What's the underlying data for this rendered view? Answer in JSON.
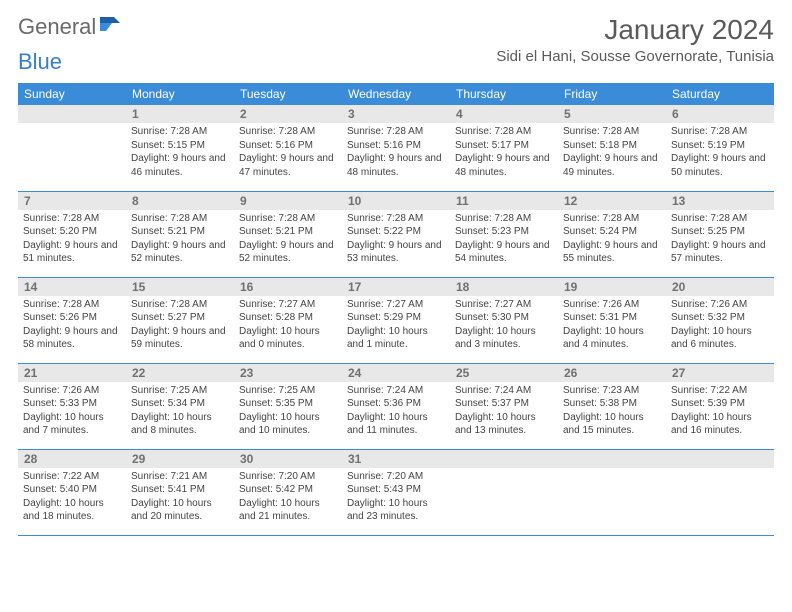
{
  "logo": {
    "part1": "General",
    "part2": "Blue"
  },
  "title": "January 2024",
  "location": "Sidi el Hani, Sousse Governorate, Tunisia",
  "colors": {
    "header_bg": "#3a8bd8",
    "header_text": "#ffffff",
    "daynum_bg": "#e8e8e8",
    "daynum_text": "#707070",
    "row_border": "#3a8bd8",
    "body_text": "#444444",
    "title_text": "#5a5a5a",
    "logo_gray": "#6a6a6a",
    "logo_blue": "#3a7fc4"
  },
  "weekdays": [
    "Sunday",
    "Monday",
    "Tuesday",
    "Wednesday",
    "Thursday",
    "Friday",
    "Saturday"
  ],
  "first_weekday_index": 1,
  "days": [
    {
      "n": 1,
      "sunrise": "7:28 AM",
      "sunset": "5:15 PM",
      "daylight": "9 hours and 46 minutes."
    },
    {
      "n": 2,
      "sunrise": "7:28 AM",
      "sunset": "5:16 PM",
      "daylight": "9 hours and 47 minutes."
    },
    {
      "n": 3,
      "sunrise": "7:28 AM",
      "sunset": "5:16 PM",
      "daylight": "9 hours and 48 minutes."
    },
    {
      "n": 4,
      "sunrise": "7:28 AM",
      "sunset": "5:17 PM",
      "daylight": "9 hours and 48 minutes."
    },
    {
      "n": 5,
      "sunrise": "7:28 AM",
      "sunset": "5:18 PM",
      "daylight": "9 hours and 49 minutes."
    },
    {
      "n": 6,
      "sunrise": "7:28 AM",
      "sunset": "5:19 PM",
      "daylight": "9 hours and 50 minutes."
    },
    {
      "n": 7,
      "sunrise": "7:28 AM",
      "sunset": "5:20 PM",
      "daylight": "9 hours and 51 minutes."
    },
    {
      "n": 8,
      "sunrise": "7:28 AM",
      "sunset": "5:21 PM",
      "daylight": "9 hours and 52 minutes."
    },
    {
      "n": 9,
      "sunrise": "7:28 AM",
      "sunset": "5:21 PM",
      "daylight": "9 hours and 52 minutes."
    },
    {
      "n": 10,
      "sunrise": "7:28 AM",
      "sunset": "5:22 PM",
      "daylight": "9 hours and 53 minutes."
    },
    {
      "n": 11,
      "sunrise": "7:28 AM",
      "sunset": "5:23 PM",
      "daylight": "9 hours and 54 minutes."
    },
    {
      "n": 12,
      "sunrise": "7:28 AM",
      "sunset": "5:24 PM",
      "daylight": "9 hours and 55 minutes."
    },
    {
      "n": 13,
      "sunrise": "7:28 AM",
      "sunset": "5:25 PM",
      "daylight": "9 hours and 57 minutes."
    },
    {
      "n": 14,
      "sunrise": "7:28 AM",
      "sunset": "5:26 PM",
      "daylight": "9 hours and 58 minutes."
    },
    {
      "n": 15,
      "sunrise": "7:28 AM",
      "sunset": "5:27 PM",
      "daylight": "9 hours and 59 minutes."
    },
    {
      "n": 16,
      "sunrise": "7:27 AM",
      "sunset": "5:28 PM",
      "daylight": "10 hours and 0 minutes."
    },
    {
      "n": 17,
      "sunrise": "7:27 AM",
      "sunset": "5:29 PM",
      "daylight": "10 hours and 1 minute."
    },
    {
      "n": 18,
      "sunrise": "7:27 AM",
      "sunset": "5:30 PM",
      "daylight": "10 hours and 3 minutes."
    },
    {
      "n": 19,
      "sunrise": "7:26 AM",
      "sunset": "5:31 PM",
      "daylight": "10 hours and 4 minutes."
    },
    {
      "n": 20,
      "sunrise": "7:26 AM",
      "sunset": "5:32 PM",
      "daylight": "10 hours and 6 minutes."
    },
    {
      "n": 21,
      "sunrise": "7:26 AM",
      "sunset": "5:33 PM",
      "daylight": "10 hours and 7 minutes."
    },
    {
      "n": 22,
      "sunrise": "7:25 AM",
      "sunset": "5:34 PM",
      "daylight": "10 hours and 8 minutes."
    },
    {
      "n": 23,
      "sunrise": "7:25 AM",
      "sunset": "5:35 PM",
      "daylight": "10 hours and 10 minutes."
    },
    {
      "n": 24,
      "sunrise": "7:24 AM",
      "sunset": "5:36 PM",
      "daylight": "10 hours and 11 minutes."
    },
    {
      "n": 25,
      "sunrise": "7:24 AM",
      "sunset": "5:37 PM",
      "daylight": "10 hours and 13 minutes."
    },
    {
      "n": 26,
      "sunrise": "7:23 AM",
      "sunset": "5:38 PM",
      "daylight": "10 hours and 15 minutes."
    },
    {
      "n": 27,
      "sunrise": "7:22 AM",
      "sunset": "5:39 PM",
      "daylight": "10 hours and 16 minutes."
    },
    {
      "n": 28,
      "sunrise": "7:22 AM",
      "sunset": "5:40 PM",
      "daylight": "10 hours and 18 minutes."
    },
    {
      "n": 29,
      "sunrise": "7:21 AM",
      "sunset": "5:41 PM",
      "daylight": "10 hours and 20 minutes."
    },
    {
      "n": 30,
      "sunrise": "7:20 AM",
      "sunset": "5:42 PM",
      "daylight": "10 hours and 21 minutes."
    },
    {
      "n": 31,
      "sunrise": "7:20 AM",
      "sunset": "5:43 PM",
      "daylight": "10 hours and 23 minutes."
    }
  ],
  "labels": {
    "sunrise": "Sunrise:",
    "sunset": "Sunset:",
    "daylight": "Daylight:"
  }
}
